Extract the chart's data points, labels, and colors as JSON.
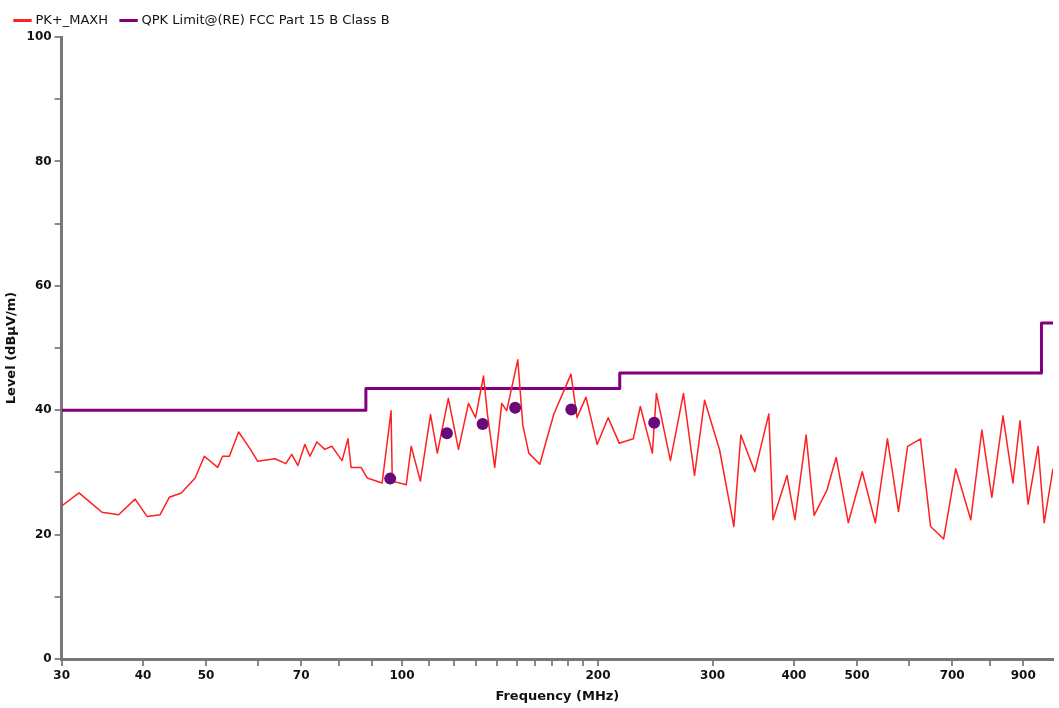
{
  "chart_data": {
    "type": "line",
    "xlabel": "Frequency (MHz)",
    "ylabel": "Level (dBµV/m)",
    "log": "x",
    "grid": false,
    "legend": "top left",
    "xlim": [
      30,
      1000
    ],
    "ylim": [
      0,
      100
    ],
    "xticks": [
      30,
      40,
      50,
      {
        "value": 60,
        "label": null
      },
      70,
      {
        "value": 80,
        "label": null
      },
      {
        "value": 90,
        "label": null
      },
      100,
      {
        "value": 110,
        "label": null
      },
      {
        "value": 120,
        "label": null
      },
      {
        "value": 130,
        "label": null
      },
      {
        "value": 140,
        "label": null
      },
      {
        "value": 150,
        "label": null
      },
      {
        "value": 160,
        "label": null
      },
      {
        "value": 170,
        "label": null
      },
      {
        "value": 180,
        "label": null
      },
      {
        "value": 190,
        "label": null
      },
      200,
      300,
      400,
      500,
      {
        "value": 600,
        "label": null
      },
      700,
      {
        "value": 800,
        "label": null
      },
      900
    ],
    "yticks": [
      0,
      {
        "value": 10,
        "label": null
      },
      20,
      {
        "value": 30,
        "label": null
      },
      40,
      {
        "value": 50,
        "label": null
      },
      60,
      {
        "value": 70,
        "label": null
      },
      80,
      {
        "value": 90,
        "label": null
      },
      100
    ],
    "series": [
      {
        "name": "PK+_MAXH",
        "type": "line",
        "color": "#ff2020",
        "marker": "none",
        "x": [
          30,
          31.9,
          34.6,
          36.7,
          38.9,
          40.6,
          42.5,
          43.9,
          45.8,
          48.1,
          49.7,
          52.1,
          53,
          54.3,
          56.1,
          58.5,
          60,
          63.8,
          66.3,
          67.7,
          69.2,
          70.9,
          72.2,
          74,
          76.1,
          78,
          80.9,
          82.6,
          83.5,
          86.5,
          88.4,
          93.2,
          96.2,
          96.6,
          101.5,
          103.3,
          106.7,
          110.6,
          113.3,
          117.8,
          122.1,
          126.5,
          129.7,
          133.4,
          135.3,
          138.8,
          142.3,
          144.8,
          150.6,
          153.3,
          156.6,
          162.8,
          166.9,
          171.1,
          181.8,
          185.7,
          191.7,
          199.4,
          207.3,
          215.6,
          226.6,
          232.3,
          242.4,
          245.9,
          258.4,
          270.6,
          281.4,
          291.6,
          307.5,
          323.4,
          331.5,
          348.3,
          366,
          371.4,
          390.3,
          401.4,
          417.6,
          429.6,
          449.7,
          464.4,
          484.8,
          509.4,
          533.4,
          556.8,
          579,
          597.9,
          625.8,
          648.6,
          679.2,
          708.9,
          747.6,
          777.6,
          805.5,
          837.9,
          867.9,
          889.8,
          915.6,
          948.6,
          969.3,
          1000
        ],
        "values": [
          24.6,
          26.7,
          23.6,
          23.2,
          25.7,
          22.9,
          23.2,
          26,
          26.7,
          29.1,
          32.6,
          30.8,
          32.6,
          32.6,
          36.5,
          33.7,
          31.8,
          32.2,
          31.4,
          32.9,
          31.1,
          34.5,
          32.6,
          34.9,
          33.7,
          34.2,
          31.9,
          35.4,
          30.8,
          30.8,
          29.1,
          28.3,
          39.9,
          28.6,
          28,
          34.2,
          28.6,
          39.3,
          33.1,
          41.9,
          33.7,
          41.1,
          38.8,
          45.5,
          39.3,
          30.8,
          41.1,
          39.9,
          48.1,
          37.6,
          33.1,
          31.3,
          35.4,
          39.4,
          45.8,
          38.8,
          42.1,
          34.5,
          38.8,
          34.7,
          35.4,
          40.6,
          33.1,
          42.7,
          31.9,
          42.7,
          29.5,
          41.6,
          33.6,
          21.3,
          36,
          30.1,
          39.4,
          22.4,
          29.5,
          22.4,
          36,
          23.1,
          27.2,
          32.4,
          21.9,
          30.1,
          21.9,
          35.4,
          23.7,
          34.2,
          35.4,
          21.3,
          19.3,
          30.6,
          22.4,
          36.8,
          26,
          39.1,
          28.3,
          38.3,
          24.9,
          34.2,
          21.9,
          30.6
        ]
      },
      {
        "name": "QPK Limit@(RE) FCC Part 15 B Class B",
        "type": "step",
        "color": "#800080",
        "marker": "none",
        "x": [
          30,
          88,
          216,
          960,
          1000
        ],
        "values": [
          40,
          43.5,
          46,
          54,
          54
        ]
      },
      {
        "type": "scatter",
        "color": "#6a0a7a",
        "marker": "circle",
        "x": [
          95.9,
          117.2,
          133,
          149.2,
          182,
          244
        ],
        "values": [
          29,
          36.3,
          37.8,
          40.4,
          40.1,
          38
        ]
      }
    ]
  }
}
